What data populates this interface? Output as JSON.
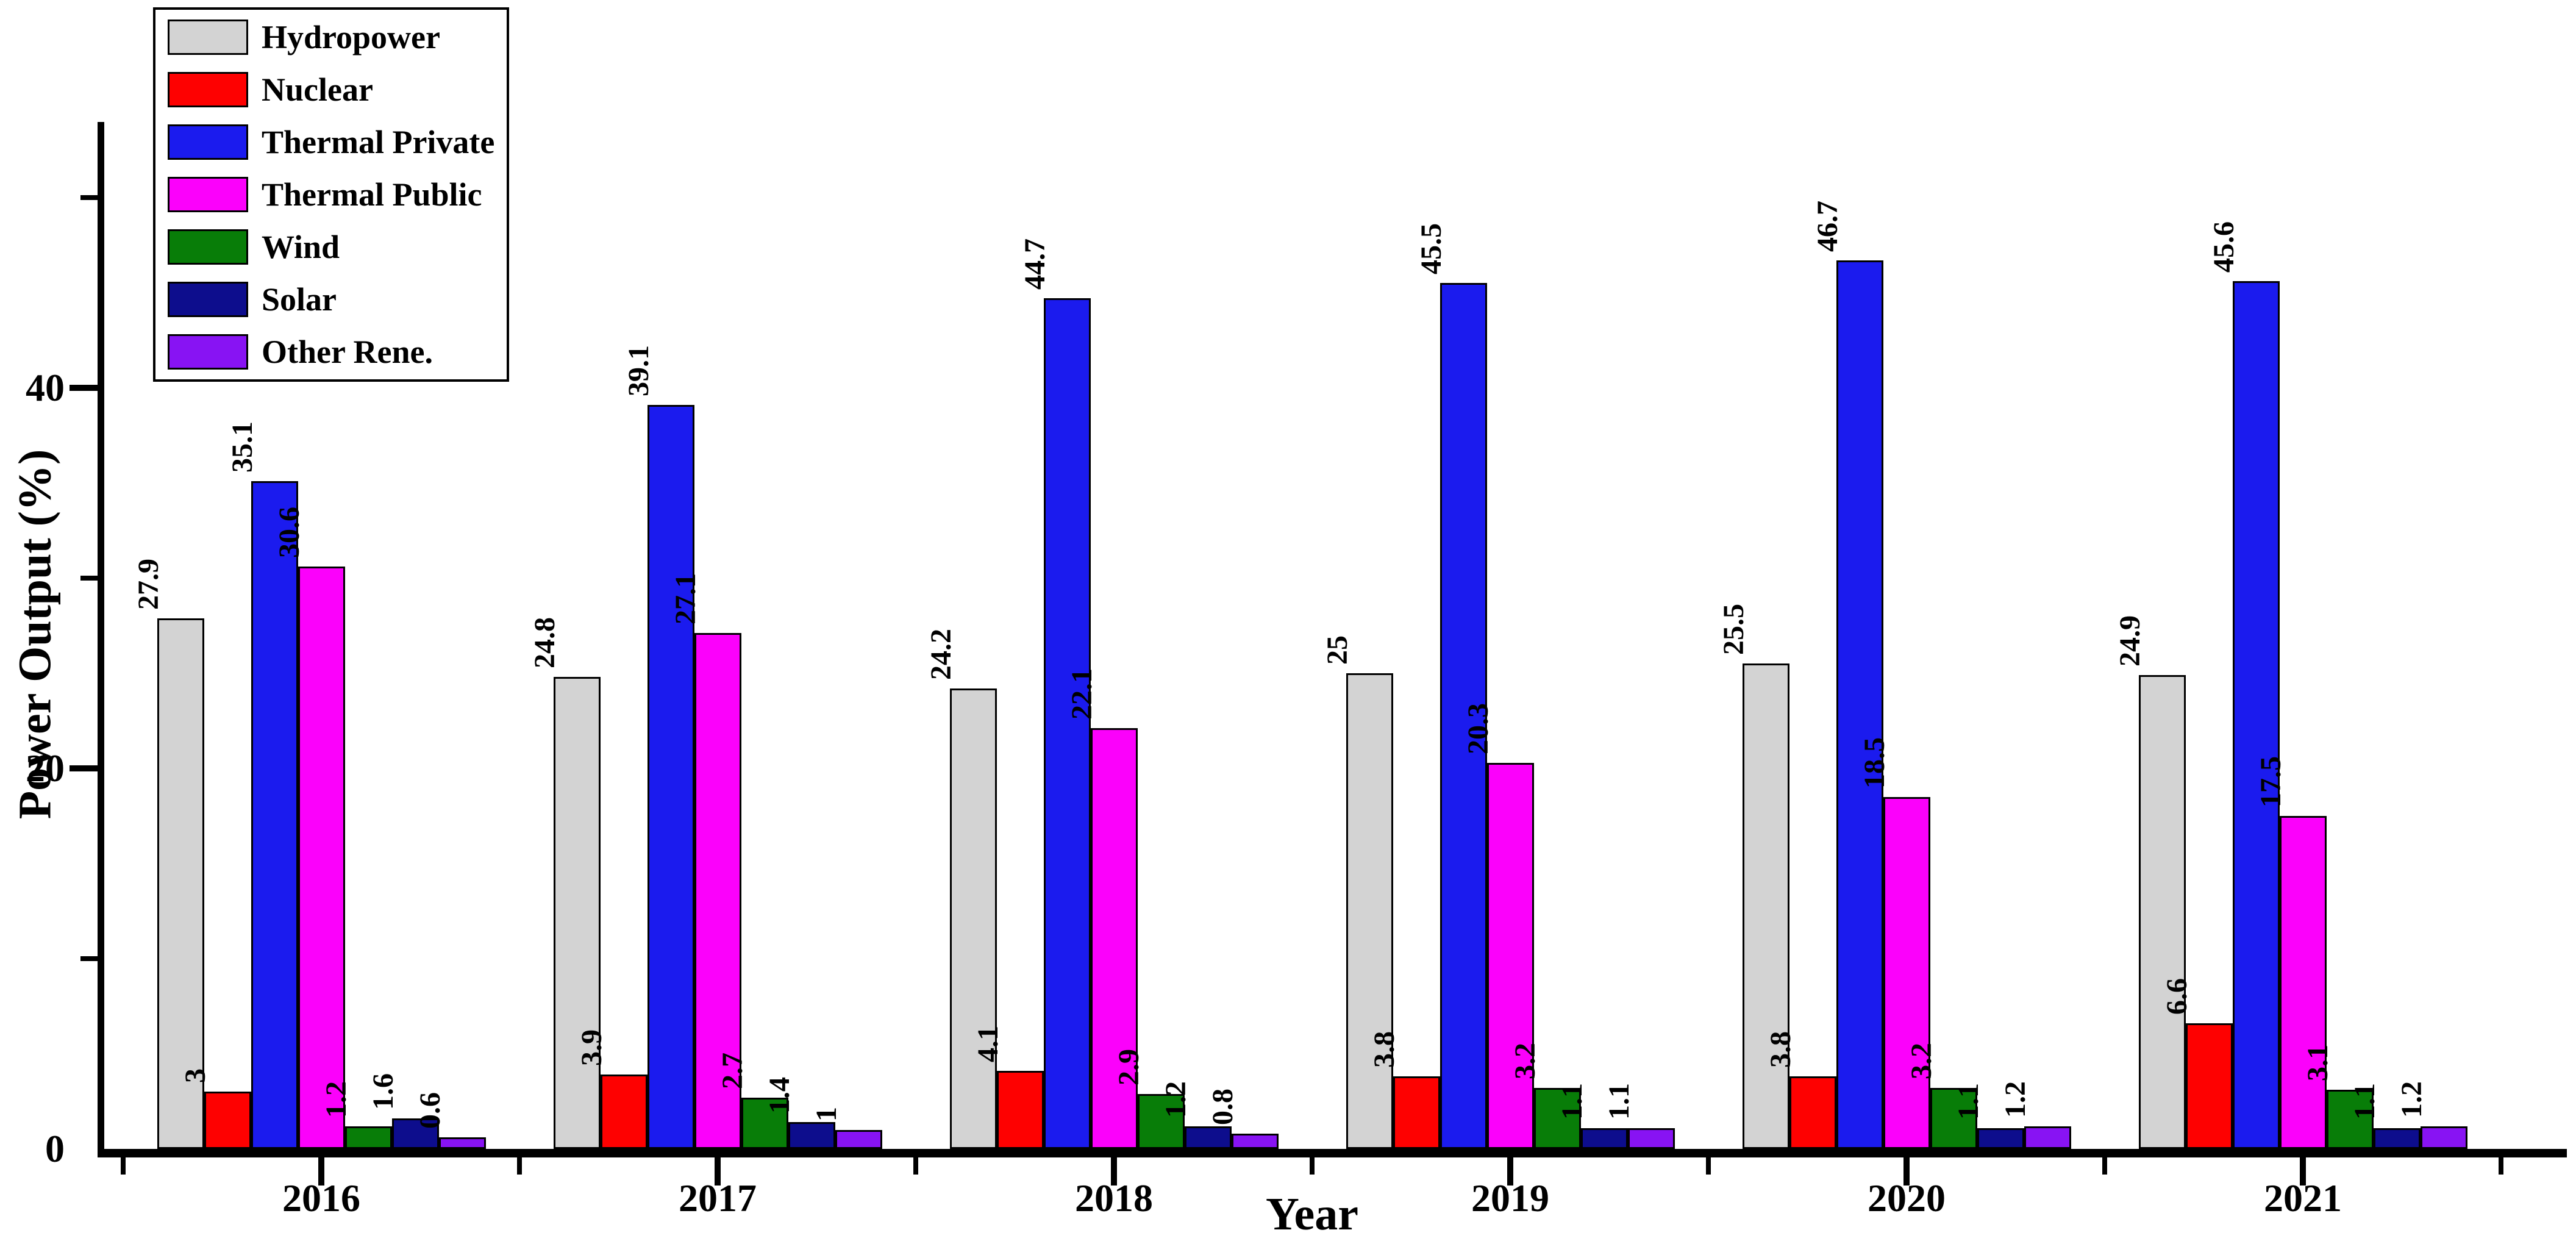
{
  "chart_data": {
    "type": "bar",
    "title": "",
    "xlabel": "Year",
    "ylabel": "Power Output (%)",
    "categories": [
      "2016",
      "2017",
      "2018",
      "2019",
      "2020",
      "2021"
    ],
    "series": [
      {
        "name": "Hydropower",
        "color": "#d3d3d3",
        "values": [
          27.9,
          24.8,
          24.2,
          25,
          25.5,
          24.9
        ]
      },
      {
        "name": "Nuclear",
        "color": "#fe0101",
        "values": [
          3,
          3.9,
          4.1,
          3.8,
          3.8,
          6.6
        ]
      },
      {
        "name": "Thermal Private",
        "color": "#1b1bee",
        "values": [
          35.1,
          39.1,
          44.7,
          45.5,
          46.7,
          45.6
        ]
      },
      {
        "name": "Thermal Public",
        "color": "#fb01fb",
        "values": [
          30.6,
          27.1,
          22.1,
          20.3,
          18.5,
          17.5
        ]
      },
      {
        "name": "Wind",
        "color": "#087d08",
        "values": [
          1.2,
          2.7,
          2.9,
          3.2,
          3.2,
          3.1
        ]
      },
      {
        "name": "Solar",
        "color": "#0d0d8d",
        "values": [
          1.6,
          1.4,
          1.2,
          1.1,
          1.1,
          1.1
        ]
      },
      {
        "name": "Other Rene.",
        "color": "#8813f3",
        "values": [
          0.6,
          1,
          0.8,
          1.1,
          1.2,
          1.2
        ]
      }
    ],
    "y_axis": {
      "labeled_ticks": [
        0,
        20,
        40
      ],
      "minor_ticks": [
        10,
        30,
        50
      ],
      "max": 54,
      "unit": "percent"
    },
    "x_axis": {
      "major_tick_positions": "under each year group center",
      "minor_tick_positions": "midpoints between year groups"
    },
    "legend_position": "top-left",
    "grid": false,
    "bar_outline_color": "#000000",
    "axis_color": "#000000",
    "background_color": "#ffffff"
  }
}
